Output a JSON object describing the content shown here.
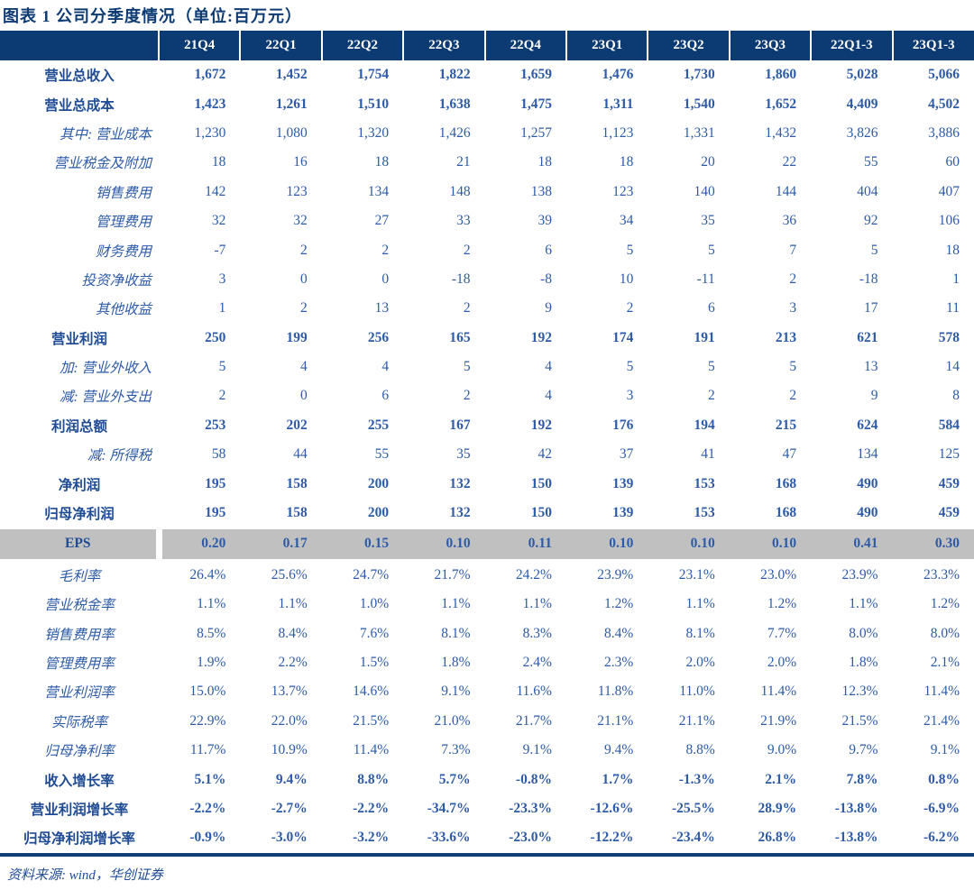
{
  "title": "图表 1  公司分季度情况（单位:百万元）",
  "source_note": "资料来源: wind，华创证券",
  "colors": {
    "header_bg": "#0c3a72",
    "header_text": "#ffffff",
    "value_text": "#2d5ba7",
    "label_text": "#1f4c94",
    "eps_row_bg": "#c0c0c0",
    "bottom_rule": "#123c74"
  },
  "table": {
    "columns": [
      "21Q4",
      "22Q1",
      "22Q2",
      "22Q3",
      "22Q4",
      "23Q1",
      "23Q2",
      "23Q3",
      "22Q1-3",
      "23Q1-3"
    ],
    "rows": [
      {
        "label": "营业总收入",
        "style": "bold",
        "values": [
          "1,672",
          "1,452",
          "1,754",
          "1,822",
          "1,659",
          "1,476",
          "1,730",
          "1,860",
          "5,028",
          "5,066"
        ]
      },
      {
        "label": "营业总成本",
        "style": "bold",
        "values": [
          "1,423",
          "1,261",
          "1,510",
          "1,638",
          "1,475",
          "1,311",
          "1,540",
          "1,652",
          "4,409",
          "4,502"
        ]
      },
      {
        "label": "其中: 营业成本",
        "style": "detail",
        "values": [
          "1,230",
          "1,080",
          "1,320",
          "1,426",
          "1,257",
          "1,123",
          "1,331",
          "1,432",
          "3,826",
          "3,886"
        ]
      },
      {
        "label": "营业税金及附加",
        "style": "detail",
        "values": [
          "18",
          "16",
          "18",
          "21",
          "18",
          "18",
          "20",
          "22",
          "55",
          "60"
        ]
      },
      {
        "label": "销售费用",
        "style": "detail",
        "values": [
          "142",
          "123",
          "134",
          "148",
          "138",
          "123",
          "140",
          "144",
          "404",
          "407"
        ]
      },
      {
        "label": "管理费用",
        "style": "detail",
        "values": [
          "32",
          "32",
          "27",
          "33",
          "39",
          "34",
          "35",
          "36",
          "92",
          "106"
        ]
      },
      {
        "label": "财务费用",
        "style": "detail",
        "values": [
          "-7",
          "2",
          "2",
          "2",
          "6",
          "5",
          "5",
          "7",
          "5",
          "18"
        ]
      },
      {
        "label": "投资净收益",
        "style": "detail",
        "values": [
          "3",
          "0",
          "0",
          "-18",
          "-8",
          "10",
          "-11",
          "2",
          "-18",
          "1"
        ]
      },
      {
        "label": "其他收益",
        "style": "detail",
        "values": [
          "1",
          "2",
          "13",
          "2",
          "9",
          "2",
          "6",
          "3",
          "17",
          "11"
        ]
      },
      {
        "label": "营业利润",
        "style": "bold",
        "values": [
          "250",
          "199",
          "256",
          "165",
          "192",
          "174",
          "191",
          "213",
          "621",
          "578"
        ]
      },
      {
        "label": "加: 营业外收入",
        "style": "detail",
        "values": [
          "5",
          "4",
          "4",
          "5",
          "4",
          "5",
          "5",
          "5",
          "13",
          "14"
        ]
      },
      {
        "label": "减: 营业外支出",
        "style": "detail",
        "values": [
          "2",
          "0",
          "6",
          "2",
          "4",
          "3",
          "2",
          "2",
          "9",
          "8"
        ]
      },
      {
        "label": "利润总额",
        "style": "bold",
        "values": [
          "253",
          "202",
          "255",
          "167",
          "192",
          "176",
          "194",
          "215",
          "624",
          "584"
        ]
      },
      {
        "label": "减: 所得税",
        "style": "detail",
        "values": [
          "58",
          "44",
          "55",
          "35",
          "42",
          "37",
          "41",
          "47",
          "134",
          "125"
        ]
      },
      {
        "label": "净利润",
        "style": "bold",
        "values": [
          "195",
          "158",
          "200",
          "132",
          "150",
          "139",
          "153",
          "168",
          "490",
          "459"
        ]
      },
      {
        "label": "归母净利润",
        "style": "bold",
        "values": [
          "195",
          "158",
          "200",
          "132",
          "150",
          "139",
          "153",
          "168",
          "490",
          "459"
        ]
      },
      {
        "label": "EPS",
        "style": "eps",
        "values": [
          "0.20",
          "0.17",
          "0.15",
          "0.10",
          "0.11",
          "0.10",
          "0.10",
          "0.10",
          "0.41",
          "0.30"
        ]
      },
      {
        "label": "毛利率",
        "style": "ratio",
        "values": [
          "26.4%",
          "25.6%",
          "24.7%",
          "21.7%",
          "24.2%",
          "23.9%",
          "23.1%",
          "23.0%",
          "23.9%",
          "23.3%"
        ]
      },
      {
        "label": "营业税金率",
        "style": "ratio",
        "values": [
          "1.1%",
          "1.1%",
          "1.0%",
          "1.1%",
          "1.1%",
          "1.2%",
          "1.1%",
          "1.2%",
          "1.1%",
          "1.2%"
        ]
      },
      {
        "label": "销售费用率",
        "style": "ratio",
        "values": [
          "8.5%",
          "8.4%",
          "7.6%",
          "8.1%",
          "8.3%",
          "8.4%",
          "8.1%",
          "7.7%",
          "8.0%",
          "8.0%"
        ]
      },
      {
        "label": "管理费用率",
        "style": "ratio",
        "values": [
          "1.9%",
          "2.2%",
          "1.5%",
          "1.8%",
          "2.4%",
          "2.3%",
          "2.0%",
          "2.0%",
          "1.8%",
          "2.1%"
        ]
      },
      {
        "label": "营业利润率",
        "style": "ratio",
        "values": [
          "15.0%",
          "13.7%",
          "14.6%",
          "9.1%",
          "11.6%",
          "11.8%",
          "11.0%",
          "11.4%",
          "12.3%",
          "11.4%"
        ]
      },
      {
        "label": "实际税率",
        "style": "ratio",
        "values": [
          "22.9%",
          "22.0%",
          "21.5%",
          "21.0%",
          "21.7%",
          "21.1%",
          "21.1%",
          "21.9%",
          "21.5%",
          "21.4%"
        ]
      },
      {
        "label": "归母净利率",
        "style": "ratio",
        "values": [
          "11.7%",
          "10.9%",
          "11.4%",
          "7.3%",
          "9.1%",
          "9.4%",
          "8.8%",
          "9.0%",
          "9.7%",
          "9.1%"
        ]
      },
      {
        "label": "收入增长率",
        "style": "bold",
        "values": [
          "5.1%",
          "9.4%",
          "8.8%",
          "5.7%",
          "-0.8%",
          "1.7%",
          "-1.3%",
          "2.1%",
          "7.8%",
          "0.8%"
        ]
      },
      {
        "label": "营业利润增长率",
        "style": "bold",
        "values": [
          "-2.2%",
          "-2.7%",
          "-2.2%",
          "-34.7%",
          "-23.3%",
          "-12.6%",
          "-25.5%",
          "28.9%",
          "-13.8%",
          "-6.9%"
        ]
      },
      {
        "label": "归母净利润增长率",
        "style": "bold",
        "values": [
          "-0.9%",
          "-3.0%",
          "-3.2%",
          "-33.6%",
          "-23.0%",
          "-12.2%",
          "-23.4%",
          "26.8%",
          "-13.8%",
          "-6.2%"
        ]
      }
    ]
  }
}
